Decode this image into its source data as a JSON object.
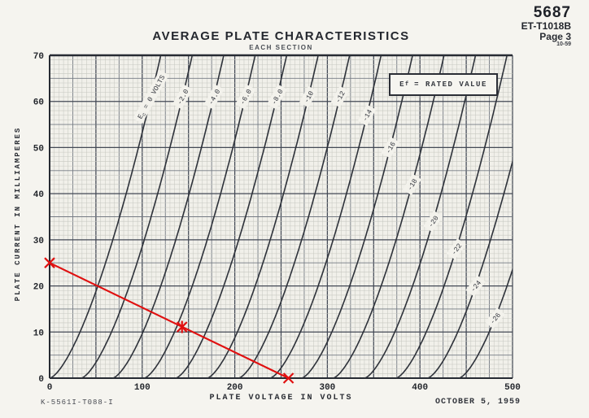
{
  "header": {
    "tube_number": "5687",
    "doc_code": "ET-T1018B",
    "page_label": "Page 3",
    "date_code": "10-59"
  },
  "footer": {
    "drawing_number": "K-5561I-T088-I",
    "date": "OCTOBER 5, 1959"
  },
  "ef_note": {
    "symbol": "E",
    "subscript": "f",
    "text": "= RATED VALUE"
  },
  "chart_data": {
    "type": "line",
    "title": "AVERAGE PLATE CHARACTERISTICS",
    "subtitle": "EACH SECTION",
    "xlabel": "PLATE VOLTAGE IN VOLTS",
    "ylabel": "PLATE CURRENT IN MILLIAMPERES",
    "xlim": [
      0,
      500
    ],
    "ylim": [
      0,
      70
    ],
    "x_ticks": [
      0,
      100,
      200,
      300,
      400,
      500
    ],
    "y_ticks": [
      0,
      10,
      20,
      30,
      40,
      50,
      60,
      70
    ],
    "grid": {
      "fine_step_v": 5,
      "fine_step_ma": 1,
      "medium_step_v": 25,
      "medium_step_ma": 5,
      "heavy_step_v": 50,
      "heavy_step_ma": 10
    },
    "annotation_box": "Ef = RATED VALUE",
    "model": {
      "type": "power_law",
      "formula": "I_mA = k * max(0, V/mu + Ec)^1.5",
      "mu": 17,
      "k": 3.73
    },
    "series": [
      {
        "ec": 0,
        "label": "Ec = 0 VOLTS",
        "subscripted": true,
        "label_anchor_i": 61,
        "label_angle": -61,
        "points": [
          [
            0,
            0
          ],
          [
            33,
            10
          ],
          [
            52,
            20
          ],
          [
            68,
            30
          ],
          [
            83,
            40
          ],
          [
            96,
            50
          ],
          [
            108,
            60
          ],
          [
            120,
            70
          ]
        ]
      },
      {
        "ec": -2,
        "label": "-2.0",
        "label_anchor_i": 61,
        "label_angle": -61,
        "points": [
          [
            34,
            0
          ],
          [
            67,
            10
          ],
          [
            86,
            20
          ],
          [
            102,
            30
          ],
          [
            117,
            40
          ],
          [
            130,
            50
          ],
          [
            142,
            60
          ],
          [
            154,
            70
          ]
        ]
      },
      {
        "ec": -4,
        "label": "-4.0",
        "label_anchor_i": 61,
        "label_angle": -61,
        "points": [
          [
            68,
            0
          ],
          [
            101,
            10
          ],
          [
            120,
            20
          ],
          [
            136,
            30
          ],
          [
            151,
            40
          ],
          [
            164,
            50
          ],
          [
            176,
            60
          ],
          [
            188,
            70
          ]
        ]
      },
      {
        "ec": -6,
        "label": "-6.0",
        "label_anchor_i": 61,
        "label_angle": -61,
        "points": [
          [
            102,
            0
          ],
          [
            135,
            10
          ],
          [
            154,
            20
          ],
          [
            170,
            30
          ],
          [
            185,
            40
          ],
          [
            198,
            50
          ],
          [
            210,
            60
          ],
          [
            222,
            70
          ]
        ]
      },
      {
        "ec": -8,
        "label": "-8.0",
        "label_anchor_i": 61,
        "label_angle": -61,
        "points": [
          [
            136,
            0
          ],
          [
            169,
            10
          ],
          [
            188,
            20
          ],
          [
            204,
            30
          ],
          [
            219,
            40
          ],
          [
            232,
            50
          ],
          [
            244,
            60
          ],
          [
            256,
            70
          ]
        ]
      },
      {
        "ec": -10,
        "label": "-10",
        "label_anchor_i": 61,
        "label_angle": -61,
        "points": [
          [
            170,
            0
          ],
          [
            203,
            10
          ],
          [
            222,
            20
          ],
          [
            238,
            30
          ],
          [
            253,
            40
          ],
          [
            266,
            50
          ],
          [
            278,
            60
          ],
          [
            290,
            70
          ]
        ]
      },
      {
        "ec": -12,
        "label": "-12",
        "label_anchor_i": 61,
        "label_angle": -61,
        "points": [
          [
            204,
            0
          ],
          [
            237,
            10
          ],
          [
            256,
            20
          ],
          [
            272,
            30
          ],
          [
            287,
            40
          ],
          [
            300,
            50
          ],
          [
            312,
            60
          ],
          [
            324,
            70
          ]
        ]
      },
      {
        "ec": -14,
        "label": "-14",
        "label_anchor_i": 57,
        "label_angle": -61,
        "points": [
          [
            238,
            0
          ],
          [
            271,
            10
          ],
          [
            290,
            20
          ],
          [
            306,
            30
          ],
          [
            321,
            40
          ],
          [
            334,
            50
          ],
          [
            346,
            60
          ],
          [
            358,
            70
          ]
        ]
      },
      {
        "ec": -16,
        "label": "-16",
        "label_anchor_i": 50,
        "label_angle": -60,
        "points": [
          [
            272,
            0
          ],
          [
            305,
            10
          ],
          [
            324,
            20
          ],
          [
            340,
            30
          ],
          [
            355,
            40
          ],
          [
            368,
            50
          ],
          [
            380,
            60
          ],
          [
            392,
            70
          ]
        ]
      },
      {
        "ec": -18,
        "label": "-18",
        "label_anchor_i": 42,
        "label_angle": -58,
        "points": [
          [
            306,
            0
          ],
          [
            339,
            10
          ],
          [
            358,
            20
          ],
          [
            374,
            30
          ],
          [
            389,
            40
          ],
          [
            402,
            50
          ],
          [
            414,
            60
          ],
          [
            426,
            70
          ]
        ]
      },
      {
        "ec": -20,
        "label": "-20",
        "label_anchor_i": 34,
        "label_angle": -56,
        "points": [
          [
            340,
            0
          ],
          [
            373,
            10
          ],
          [
            392,
            20
          ],
          [
            408,
            30
          ],
          [
            423,
            40
          ],
          [
            436,
            50
          ],
          [
            448,
            60
          ],
          [
            460,
            70
          ]
        ]
      },
      {
        "ec": -22,
        "label": "-22",
        "label_anchor_i": 28,
        "label_angle": -54,
        "points": [
          [
            374,
            0
          ],
          [
            407,
            10
          ],
          [
            426,
            20
          ],
          [
            442,
            30
          ],
          [
            457,
            40
          ],
          [
            470,
            50
          ],
          [
            482,
            60
          ],
          [
            494,
            70
          ]
        ]
      },
      {
        "ec": -24,
        "label": "-24",
        "label_anchor_i": 20,
        "label_angle": -52,
        "points": [
          [
            408,
            0
          ],
          [
            441,
            10
          ],
          [
            460,
            20
          ],
          [
            476,
            30
          ],
          [
            491,
            40
          ],
          [
            500,
            47
          ]
        ]
      },
      {
        "ec": -26,
        "label": "-26",
        "label_anchor_i": 13,
        "label_angle": -50,
        "points": [
          [
            442,
            0
          ],
          [
            475,
            10
          ],
          [
            494,
            20
          ],
          [
            500,
            23.5
          ]
        ]
      }
    ],
    "load_line": {
      "color": "#e01010",
      "points": [
        [
          0,
          25
        ],
        [
          143,
          11.1
        ],
        [
          258,
          0
        ]
      ],
      "markers": [
        "x",
        "asterisk",
        "x"
      ]
    }
  }
}
